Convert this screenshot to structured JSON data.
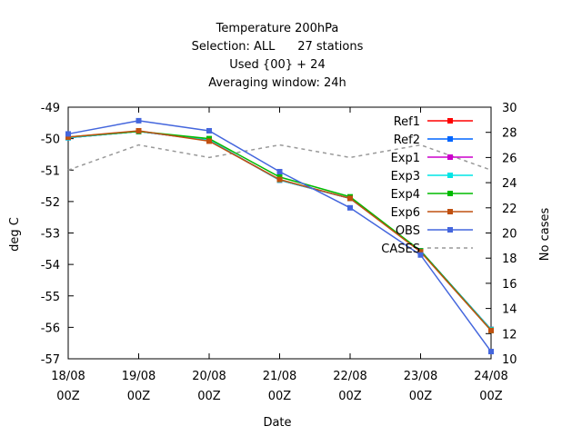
{
  "chart_data": {
    "type": "line",
    "title_lines": [
      "Temperature 200hPa",
      "Selection: ALL      27 stations",
      "Used {00} + 24",
      "Averaging window: 24h"
    ],
    "xlabel": "Date",
    "ylabel": "deg C",
    "y2label": "No cases",
    "x": [
      "18/08 00Z",
      "19/08 00Z",
      "20/08 00Z",
      "21/08 00Z",
      "22/08 00Z",
      "23/08 00Z",
      "24/08 00Z"
    ],
    "x_ticks": [
      {
        "date": "18/08",
        "hour": "00Z"
      },
      {
        "date": "19/08",
        "hour": "00Z"
      },
      {
        "date": "20/08",
        "hour": "00Z"
      },
      {
        "date": "21/08",
        "hour": "00Z"
      },
      {
        "date": "22/08",
        "hour": "00Z"
      },
      {
        "date": "23/08",
        "hour": "00Z"
      },
      {
        "date": "24/08",
        "hour": "00Z"
      }
    ],
    "ylim": [
      -57,
      -49
    ],
    "y_ticks": [
      "-49",
      "-50",
      "-51",
      "-52",
      "-53",
      "-54",
      "-55",
      "-56",
      "-57"
    ],
    "y2lim": [
      10,
      30
    ],
    "y2_ticks": [
      "30",
      "28",
      "26",
      "24",
      "22",
      "20",
      "18",
      "16",
      "14",
      "12",
      "10"
    ],
    "legend_position": "top-right",
    "series": [
      {
        "name": "Ref1",
        "color": "#ff0000",
        "values": [
          -49.97,
          -49.77,
          -50.05,
          -51.32,
          -51.9,
          -53.57,
          -56.07
        ]
      },
      {
        "name": "Ref2",
        "color": "#0066ff",
        "values": [
          -49.97,
          -49.77,
          -50.05,
          -51.32,
          -51.9,
          -53.57,
          -56.07
        ]
      },
      {
        "name": "Exp1",
        "color": "#cc00cc",
        "values": [
          -49.97,
          -49.77,
          -50.05,
          -51.32,
          -51.9,
          -53.57,
          -56.07
        ]
      },
      {
        "name": "Exp3",
        "color": "#00e5e5",
        "values": [
          -49.97,
          -49.77,
          -50.05,
          -51.32,
          -51.9,
          -53.57,
          -56.07
        ]
      },
      {
        "name": "Exp4",
        "color": "#00bb00",
        "values": [
          -49.95,
          -49.77,
          -50.0,
          -51.22,
          -51.85,
          -53.57,
          -56.1
        ]
      },
      {
        "name": "Exp6",
        "color": "#c05010",
        "values": [
          -49.95,
          -49.75,
          -50.08,
          -51.3,
          -51.9,
          -53.6,
          -56.1
        ]
      },
      {
        "name": "OBS",
        "color": "#4466dd",
        "values": [
          -49.85,
          -49.43,
          -49.75,
          -51.05,
          -52.2,
          -53.7,
          -56.77
        ]
      }
    ],
    "cases": {
      "name": "CASES",
      "color": "#999999",
      "axis": "right",
      "values": [
        25,
        27,
        26,
        27,
        26,
        27,
        25
      ]
    }
  }
}
